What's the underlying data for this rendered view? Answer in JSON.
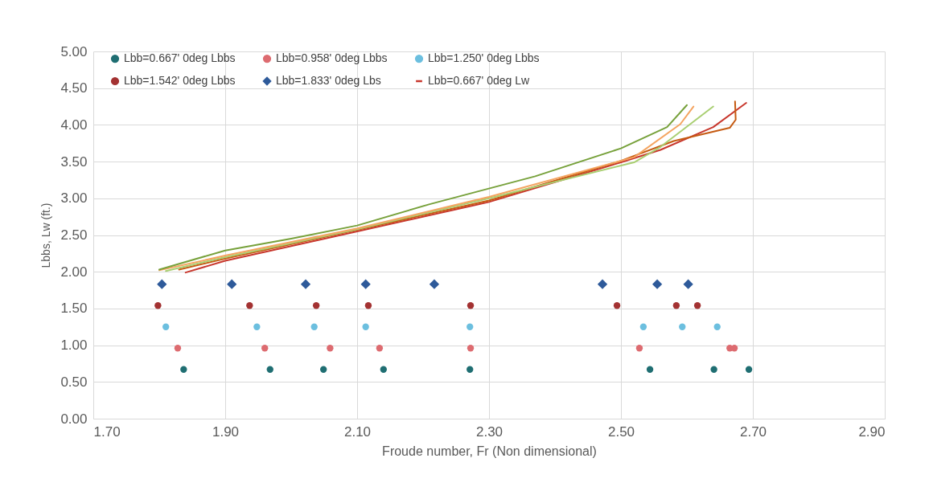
{
  "chart_data": {
    "type": "scatter",
    "xlabel": "Froude number, Fr (Non dimensional)",
    "ylabel": "Lbbs, Lw (ft.)",
    "xlim": [
      1.7,
      2.9
    ],
    "xticks": [
      {
        "value": 1.7,
        "label": "1.70"
      },
      {
        "value": 1.9,
        "label": "1.90"
      },
      {
        "value": 2.1,
        "label": "2.10"
      },
      {
        "value": 2.3,
        "label": "2.30"
      },
      {
        "value": 2.5,
        "label": "2.50"
      },
      {
        "value": 2.7,
        "label": "2.70"
      },
      {
        "value": 2.9,
        "label": "2.90"
      }
    ],
    "ylim": [
      0,
      5
    ],
    "yticks": [
      {
        "value": 0,
        "label": "0.00"
      },
      {
        "value": 0.5,
        "label": "0.50"
      },
      {
        "value": 1,
        "label": "1.00"
      },
      {
        "value": 1.5,
        "label": "1.50"
      },
      {
        "value": 2,
        "label": "2.00"
      },
      {
        "value": 2.5,
        "label": "2.50"
      },
      {
        "value": 3,
        "label": "3.00"
      },
      {
        "value": 3.5,
        "label": "3.50"
      },
      {
        "value": 4,
        "label": "4.00"
      },
      {
        "value": 4.5,
        "label": "4.50"
      },
      {
        "value": 5,
        "label": "5.00"
      }
    ],
    "grid": true,
    "legend": "top",
    "series": [
      {
        "name": "Lbb=0.667' 0deg Lbbs",
        "color": "#1f6e72",
        "marker": "circle",
        "x": [
          1.837,
          1.968,
          2.049,
          2.14,
          2.271,
          2.544,
          2.641,
          2.694
        ],
        "values": [
          0.67,
          0.67,
          0.67,
          0.67,
          0.67,
          0.67,
          0.67,
          0.67
        ]
      },
      {
        "name": "Lbb=0.958' 0deg Lbbs",
        "color": "#dd6b70",
        "marker": "circle",
        "x": [
          1.828,
          1.96,
          2.059,
          2.134,
          2.272,
          2.528,
          2.665,
          2.672
        ],
        "values": [
          0.96,
          0.96,
          0.96,
          0.96,
          0.96,
          0.96,
          0.96,
          0.96
        ]
      },
      {
        "name": "Lbb=1.250' 0deg Lbbs",
        "color": "#6cbfdf",
        "marker": "circle",
        "x": [
          1.81,
          1.948,
          2.035,
          2.113,
          2.271,
          2.534,
          2.593,
          2.646
        ],
        "values": [
          1.25,
          1.25,
          1.25,
          1.25,
          1.25,
          1.25,
          1.25,
          1.25
        ]
      },
      {
        "name": "Lbb=1.542' 0deg Lbbs",
        "color": "#a33232",
        "marker": "circle",
        "x": [
          1.798,
          1.937,
          2.038,
          2.117,
          2.272,
          2.494,
          2.584,
          2.616
        ],
        "values": [
          1.54,
          1.54,
          1.54,
          1.54,
          1.54,
          1.54,
          1.54,
          1.54
        ]
      },
      {
        "name": "Lbb=1.833' 0deg Lbs",
        "color": "#2e5a9a",
        "marker": "diamond",
        "x": [
          1.804,
          1.91,
          2.022,
          2.113,
          2.217,
          2.472,
          2.555,
          2.602
        ],
        "values": [
          1.83,
          1.83,
          1.83,
          1.83,
          1.83,
          1.83,
          1.83,
          1.83
        ]
      },
      {
        "name": "Lbb=0.667' 0deg Lw",
        "type": "line",
        "color": "#c8372d",
        "x": [
          1.84,
          1.9,
          2.1,
          2.3,
          2.5,
          2.56,
          2.64,
          2.69
        ],
        "values": [
          1.99,
          2.15,
          2.55,
          2.95,
          3.49,
          3.66,
          3.97,
          4.3
        ]
      },
      {
        "type": "line",
        "color": "#c55a11",
        "x": [
          1.83,
          1.9,
          2.1,
          2.3,
          2.5,
          2.58,
          2.665,
          2.674,
          2.673
        ],
        "values": [
          2.03,
          2.18,
          2.57,
          2.97,
          3.51,
          3.78,
          3.96,
          4.07,
          4.32
        ]
      },
      {
        "type": "line",
        "color": "#a9cf72",
        "x": [
          1.81,
          1.9,
          2.1,
          2.3,
          2.52,
          2.56,
          2.64
        ],
        "values": [
          2.01,
          2.2,
          2.58,
          3.0,
          3.49,
          3.7,
          4.25
        ]
      },
      {
        "type": "line",
        "color": "#f4a460",
        "x": [
          1.8,
          1.9,
          2.1,
          2.3,
          2.52,
          2.59,
          2.61
        ],
        "values": [
          2.02,
          2.22,
          2.59,
          3.02,
          3.56,
          4.01,
          4.25
        ]
      },
      {
        "type": "line",
        "color": "#77a13b",
        "x": [
          1.8,
          1.9,
          2.0,
          2.1,
          2.21,
          2.37,
          2.5,
          2.57,
          2.6
        ],
        "values": [
          2.03,
          2.29,
          2.45,
          2.63,
          2.92,
          3.3,
          3.68,
          3.97,
          4.27
        ]
      }
    ]
  }
}
